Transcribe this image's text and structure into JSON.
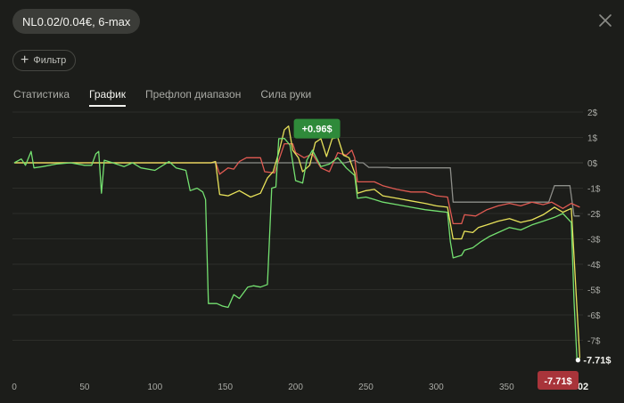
{
  "header": {
    "title": "NL0.02/0.04€, 6-max"
  },
  "filter": {
    "label": "Фильтр"
  },
  "tabs": [
    {
      "label": "Статистика",
      "active": false
    },
    {
      "label": "График",
      "active": true
    },
    {
      "label": "Префлоп диапазон",
      "active": false
    },
    {
      "label": "Сила руки",
      "active": false
    }
  ],
  "chart_data": {
    "type": "line",
    "y_ticks": [
      "2$",
      "1$",
      "0$",
      "-1$",
      "-2$",
      "-3$",
      "-4$",
      "-5$",
      "-6$",
      "-7$"
    ],
    "y_tick_values": [
      2,
      1,
      0,
      -1,
      -2,
      -3,
      -4,
      -5,
      -6,
      -7
    ],
    "x_ticks": [
      "0",
      "50",
      "100",
      "150",
      "200",
      "250",
      "300",
      "350"
    ],
    "x_tick_values": [
      0,
      50,
      100,
      150,
      200,
      250,
      300,
      350
    ],
    "x_last_tick_visible": "02",
    "xlim": [
      0,
      402
    ],
    "ylim": [
      -8.2,
      2.2
    ],
    "grid": "horizontal",
    "annotations": {
      "peak_label": "+0.96$",
      "peak_x": 200,
      "peak_y": 0.96,
      "end_label": "-7.71$",
      "end_x": 402,
      "end_y": -7.71,
      "end_badge": "-7.71$"
    },
    "colors": {
      "green": "#74e070",
      "yellow": "#e8e25a",
      "red": "#e05a52",
      "gray": "#8d8e89",
      "peak_badge": "#2f8a3a",
      "end_badge": "#a8343a"
    },
    "series": [
      {
        "color": "gray",
        "points": [
          [
            0,
            0
          ],
          [
            30,
            0
          ],
          [
            70,
            0
          ],
          [
            120,
            0
          ],
          [
            155,
            0
          ],
          [
            200,
            0
          ],
          [
            235,
            0
          ],
          [
            242,
            0.1
          ],
          [
            245,
            0
          ],
          [
            248,
            0
          ],
          [
            252,
            -0.18
          ],
          [
            262,
            -0.18
          ],
          [
            265,
            -0.18
          ],
          [
            268,
            -0.2
          ],
          [
            280,
            -0.2
          ],
          [
            310,
            -0.2
          ],
          [
            312,
            -1.55
          ],
          [
            320,
            -1.55
          ],
          [
            340,
            -1.55
          ],
          [
            360,
            -1.55
          ],
          [
            375,
            -1.55
          ],
          [
            380,
            -1.55
          ],
          [
            384,
            -0.9
          ],
          [
            392,
            -0.9
          ],
          [
            395,
            -0.9
          ],
          [
            398,
            -2.1
          ],
          [
            402,
            -2.1
          ]
        ]
      },
      {
        "color": "red",
        "points": [
          [
            0,
            0
          ],
          [
            20,
            0
          ],
          [
            45,
            0
          ],
          [
            80,
            0
          ],
          [
            115,
            0
          ],
          [
            140,
            0
          ],
          [
            143,
            0.05
          ],
          [
            146,
            -0.45
          ],
          [
            152,
            -0.2
          ],
          [
            156,
            -0.25
          ],
          [
            160,
            0.05
          ],
          [
            165,
            0.2
          ],
          [
            175,
            0.2
          ],
          [
            178,
            -0.35
          ],
          [
            185,
            -0.4
          ],
          [
            192,
            0.75
          ],
          [
            198,
            0.75
          ],
          [
            200,
            0.4
          ],
          [
            206,
            0.2
          ],
          [
            212,
            0.35
          ],
          [
            218,
            -0.2
          ],
          [
            224,
            -0.35
          ],
          [
            230,
            0.4
          ],
          [
            236,
            0.3
          ],
          [
            240,
            0.5
          ],
          [
            242,
            0.2
          ],
          [
            244,
            -0.75
          ],
          [
            250,
            -0.75
          ],
          [
            256,
            -0.75
          ],
          [
            262,
            -0.9
          ],
          [
            272,
            -1.05
          ],
          [
            282,
            -1.15
          ],
          [
            292,
            -1.15
          ],
          [
            300,
            -1.3
          ],
          [
            308,
            -1.35
          ],
          [
            312,
            -2.4
          ],
          [
            318,
            -2.4
          ],
          [
            320,
            -2.05
          ],
          [
            328,
            -2.1
          ],
          [
            336,
            -1.85
          ],
          [
            344,
            -1.7
          ],
          [
            352,
            -1.6
          ],
          [
            360,
            -1.7
          ],
          [
            368,
            -1.55
          ],
          [
            376,
            -1.65
          ],
          [
            382,
            -1.55
          ],
          [
            390,
            -1.8
          ],
          [
            396,
            -1.6
          ],
          [
            402,
            -1.75
          ]
        ]
      },
      {
        "color": "yellow",
        "points": [
          [
            0,
            0
          ],
          [
            20,
            0
          ],
          [
            45,
            0
          ],
          [
            80,
            0
          ],
          [
            115,
            0
          ],
          [
            140,
            0
          ],
          [
            143,
            0.05
          ],
          [
            146,
            -1.25
          ],
          [
            152,
            -1.3
          ],
          [
            160,
            -1.1
          ],
          [
            168,
            -1.35
          ],
          [
            175,
            -1.2
          ],
          [
            180,
            -0.6
          ],
          [
            184,
            -0.35
          ],
          [
            188,
            0.4
          ],
          [
            192,
            1.3
          ],
          [
            195,
            1.45
          ],
          [
            198,
            0.5
          ],
          [
            202,
            0.2
          ],
          [
            205,
            -0.35
          ],
          [
            210,
            -0.1
          ],
          [
            214,
            0.8
          ],
          [
            218,
            0.95
          ],
          [
            222,
            0.25
          ],
          [
            226,
            0.95
          ],
          [
            230,
            1.0
          ],
          [
            234,
            0.3
          ],
          [
            238,
            0.2
          ],
          [
            242,
            -0.4
          ],
          [
            244,
            -1.2
          ],
          [
            250,
            -1.1
          ],
          [
            256,
            -1.05
          ],
          [
            262,
            -1.3
          ],
          [
            272,
            -1.4
          ],
          [
            282,
            -1.5
          ],
          [
            292,
            -1.6
          ],
          [
            300,
            -1.7
          ],
          [
            308,
            -1.75
          ],
          [
            312,
            -3.0
          ],
          [
            318,
            -3.0
          ],
          [
            320,
            -2.7
          ],
          [
            326,
            -2.75
          ],
          [
            330,
            -2.55
          ],
          [
            336,
            -2.45
          ],
          [
            344,
            -2.3
          ],
          [
            352,
            -2.2
          ],
          [
            360,
            -2.35
          ],
          [
            368,
            -2.25
          ],
          [
            376,
            -2.05
          ],
          [
            384,
            -1.75
          ],
          [
            390,
            -1.95
          ],
          [
            396,
            -1.8
          ],
          [
            402,
            -7.71
          ]
        ]
      },
      {
        "color": "green",
        "points": [
          [
            0,
            0
          ],
          [
            5,
            0.15
          ],
          [
            8,
            -0.1
          ],
          [
            12,
            0.45
          ],
          [
            14,
            -0.2
          ],
          [
            20,
            -0.15
          ],
          [
            30,
            -0.05
          ],
          [
            40,
            0
          ],
          [
            50,
            -0.1
          ],
          [
            55,
            -0.1
          ],
          [
            58,
            0.35
          ],
          [
            60,
            0.45
          ],
          [
            62,
            -1.2
          ],
          [
            64,
            0.1
          ],
          [
            70,
            0
          ],
          [
            78,
            -0.15
          ],
          [
            84,
            0
          ],
          [
            90,
            -0.2
          ],
          [
            100,
            -0.3
          ],
          [
            110,
            0.05
          ],
          [
            115,
            -0.2
          ],
          [
            122,
            -0.3
          ],
          [
            125,
            -1.1
          ],
          [
            130,
            -1.0
          ],
          [
            134,
            -1.15
          ],
          [
            136,
            -1.45
          ],
          [
            138,
            -5.55
          ],
          [
            144,
            -5.55
          ],
          [
            148,
            -5.65
          ],
          [
            152,
            -5.7
          ],
          [
            156,
            -5.2
          ],
          [
            160,
            -5.35
          ],
          [
            166,
            -4.9
          ],
          [
            170,
            -4.85
          ],
          [
            175,
            -4.9
          ],
          [
            180,
            -4.8
          ],
          [
            183,
            -1.0
          ],
          [
            186,
            -0.95
          ],
          [
            188,
            0.95
          ],
          [
            192,
            0.96
          ],
          [
            196,
            0.7
          ],
          [
            200,
            -0.7
          ],
          [
            205,
            -0.8
          ],
          [
            208,
            0.1
          ],
          [
            212,
            0.5
          ],
          [
            218,
            -0.15
          ],
          [
            224,
            -0.05
          ],
          [
            230,
            0.2
          ],
          [
            236,
            -0.2
          ],
          [
            242,
            -0.5
          ],
          [
            244,
            -1.4
          ],
          [
            250,
            -1.35
          ],
          [
            256,
            -1.45
          ],
          [
            262,
            -1.55
          ],
          [
            272,
            -1.65
          ],
          [
            282,
            -1.75
          ],
          [
            292,
            -1.85
          ],
          [
            300,
            -1.9
          ],
          [
            308,
            -1.95
          ],
          [
            310,
            -3.1
          ],
          [
            312,
            -3.75
          ],
          [
            318,
            -3.65
          ],
          [
            320,
            -3.45
          ],
          [
            326,
            -3.35
          ],
          [
            332,
            -3.1
          ],
          [
            338,
            -2.9
          ],
          [
            344,
            -2.75
          ],
          [
            352,
            -2.55
          ],
          [
            360,
            -2.65
          ],
          [
            368,
            -2.45
          ],
          [
            376,
            -2.3
          ],
          [
            384,
            -2.15
          ],
          [
            390,
            -2.0
          ],
          [
            396,
            -2.35
          ],
          [
            398,
            -5.5
          ],
          [
            400,
            -7.71
          ],
          [
            402,
            -7.71
          ]
        ]
      }
    ]
  }
}
